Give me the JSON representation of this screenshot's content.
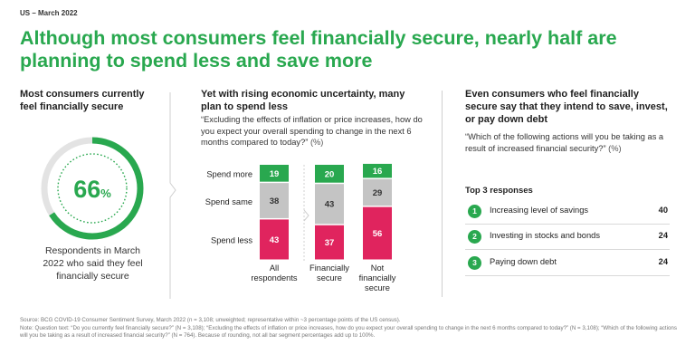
{
  "eyebrow": "US – March 2022",
  "headline": "Although most consumers feel financially secure, nearly half are planning to spend less and save more",
  "col1": {
    "title": "Most consumers currently feel financially secure",
    "ring_value": 66,
    "ring_value_text": "66",
    "ring_unit": "%",
    "caption": "Respondents in March 2022 who said they feel financially secure"
  },
  "col2": {
    "title": "Yet with rising economic uncertainty, many plan to spend less",
    "question": "“Excluding the effects of inflation or price increases, how do you expect your overall spending to change in the next 6 months compared to today?”",
    "unit": "(%)"
  },
  "col3": {
    "title": "Even consumers who feel financially secure say that they intend to save, invest, or pay down debt",
    "question": "“Which of the following actions will you be taking as a result of increased financial security?”",
    "unit": "(%)",
    "top3_title": "Top 3 responses",
    "responses": [
      {
        "num": "1",
        "label": "Increasing level of savings",
        "value": "40"
      },
      {
        "num": "2",
        "label": "Investing in stocks and bonds",
        "value": "24"
      },
      {
        "num": "3",
        "label": "Paying down debt",
        "value": "24"
      }
    ]
  },
  "chart_data": {
    "type": "bar",
    "stacked": true,
    "categories": [
      [
        "All",
        "respondents"
      ],
      [
        "Financially",
        "secure"
      ],
      [
        "Not",
        "financially",
        "secure"
      ]
    ],
    "series": [
      {
        "name": "Spend less",
        "values": [
          43,
          37,
          56
        ],
        "color": "#e0245e"
      },
      {
        "name": "Spend same",
        "values": [
          38,
          43,
          29
        ],
        "color": "#c4c4c4"
      },
      {
        "name": "Spend more",
        "values": [
          19,
          20,
          16
        ],
        "color": "#29a84f"
      }
    ],
    "ylim": [
      0,
      100
    ],
    "grid": false
  },
  "source": "Source: BCG COVID-19 Consumer Sentiment Survey, March 2022 (n = 3,108; unweighted; representative within ~3 percentage points of the US census).",
  "note": "Note: Question text: “Do you currently feel financially secure?” (N = 3,108); “Excluding the effects of inflation or price increases, how do you expect your overall spending to change in the next 6 months compared to today?” (N = 3,108); “Which of the following actions will you be taking as a result of increased financial security?” (N = 764). Because of rounding, not all bar segment percentages add up to 100%."
}
